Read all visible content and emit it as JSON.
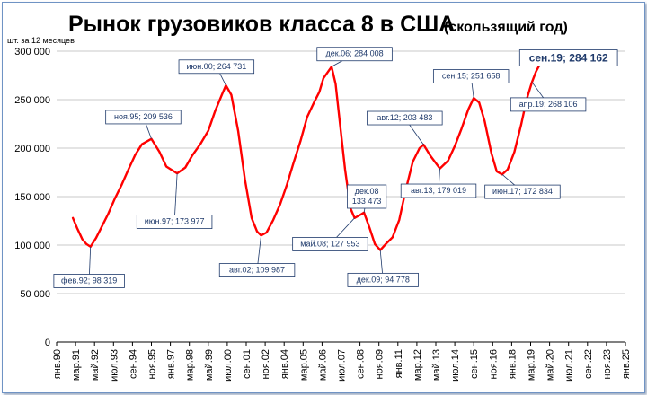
{
  "chart_data": {
    "type": "line",
    "title": "Рынок грузовиков класса 8 в США",
    "subtitle": "(скользящий год)",
    "unit_label": "шт. за 12 месяцев",
    "ylim": [
      0,
      300000
    ],
    "y_ticks": [
      "0",
      "50 000",
      "100 000",
      "150 000",
      "200 000",
      "250 000",
      "300 000"
    ],
    "x_ticks": [
      "янв.90",
      "мар.91",
      "май.92",
      "июл.93",
      "сен.94",
      "ноя.95",
      "янв.97",
      "мар.98",
      "май.99",
      "июл.00",
      "сен.01",
      "ноя.02",
      "янв.04",
      "мар.05",
      "май.06",
      "июл.07",
      "сен.08",
      "ноя.09",
      "янв.11",
      "мар.12",
      "май.13",
      "июл.14",
      "сен.15",
      "ноя.16",
      "янв.18",
      "мар.19",
      "май.20",
      "июл.21",
      "сен.22",
      "ноя.23",
      "янв.25"
    ],
    "line_color": "#ff0000",
    "series": [
      {
        "points": [
          [
            "1991-01",
            128000
          ],
          [
            "1991-04",
            118000
          ],
          [
            "1991-08",
            106000
          ],
          [
            "1991-11",
            101000
          ],
          [
            "1992-02",
            98319
          ],
          [
            "1992-06",
            107000
          ],
          [
            "1992-10",
            118000
          ],
          [
            "1993-03",
            132000
          ],
          [
            "1993-08",
            148000
          ],
          [
            "1994-01",
            162000
          ],
          [
            "1994-06",
            178000
          ],
          [
            "1994-11",
            193000
          ],
          [
            "1995-04",
            204000
          ],
          [
            "1995-11",
            209536
          ],
          [
            "1996-05",
            196000
          ],
          [
            "1996-10",
            181000
          ],
          [
            "1997-06",
            173977
          ],
          [
            "1997-12",
            180000
          ],
          [
            "1998-05",
            192000
          ],
          [
            "1998-11",
            204000
          ],
          [
            "1999-05",
            218000
          ],
          [
            "1999-10",
            238000
          ],
          [
            "2000-03",
            255000
          ],
          [
            "2000-06",
            264731
          ],
          [
            "2000-10",
            255000
          ],
          [
            "2001-03",
            218000
          ],
          [
            "2001-08",
            168000
          ],
          [
            "2002-01",
            128000
          ],
          [
            "2002-05",
            114000
          ],
          [
            "2002-08",
            109987
          ],
          [
            "2002-12",
            113000
          ],
          [
            "2003-05",
            126000
          ],
          [
            "2003-10",
            142000
          ],
          [
            "2004-03",
            162000
          ],
          [
            "2004-08",
            185000
          ],
          [
            "2005-01",
            207000
          ],
          [
            "2005-06",
            232000
          ],
          [
            "2005-11",
            247000
          ],
          [
            "2006-03",
            258000
          ],
          [
            "2006-06",
            272000
          ],
          [
            "2006-09",
            278000
          ],
          [
            "2006-12",
            284008
          ],
          [
            "2007-03",
            266000
          ],
          [
            "2007-06",
            228000
          ],
          [
            "2007-10",
            178000
          ],
          [
            "2008-02",
            138000
          ],
          [
            "2008-05",
            127953
          ],
          [
            "2008-09",
            131000
          ],
          [
            "2008-12",
            133473
          ],
          [
            "2009-04",
            118000
          ],
          [
            "2009-08",
            101000
          ],
          [
            "2009-12",
            94778
          ],
          [
            "2010-04",
            101000
          ],
          [
            "2010-09",
            108000
          ],
          [
            "2011-02",
            126000
          ],
          [
            "2011-07",
            158000
          ],
          [
            "2011-12",
            186000
          ],
          [
            "2012-05",
            200000
          ],
          [
            "2012-08",
            203483
          ],
          [
            "2013-01",
            192000
          ],
          [
            "2013-08",
            179019
          ],
          [
            "2014-02",
            187000
          ],
          [
            "2014-07",
            202000
          ],
          [
            "2014-12",
            220000
          ],
          [
            "2015-05",
            240000
          ],
          [
            "2015-09",
            251658
          ],
          [
            "2016-01",
            247000
          ],
          [
            "2016-05",
            228000
          ],
          [
            "2016-10",
            195000
          ],
          [
            "2017-02",
            176000
          ],
          [
            "2017-06",
            172834
          ],
          [
            "2017-10",
            178000
          ],
          [
            "2018-03",
            196000
          ],
          [
            "2018-08",
            224000
          ],
          [
            "2018-12",
            250000
          ],
          [
            "2019-04",
            268106
          ],
          [
            "2019-07",
            279000
          ],
          [
            "2019-09",
            284162
          ]
        ]
      }
    ],
    "annotations": [
      {
        "text": "фев.92; 98 319",
        "at": [
          "1992-02",
          98319
        ],
        "label_at": [
          "1992-01",
          63000
        ],
        "bold": false
      },
      {
        "text": "ноя.95; 209 536",
        "at": [
          "1995-11",
          209536
        ],
        "label_at": [
          "1995-05",
          232000
        ],
        "bold": false
      },
      {
        "text": "июн.97; 173 977",
        "at": [
          "1997-06",
          173977
        ],
        "label_at": [
          "1997-04",
          124000
        ],
        "bold": false
      },
      {
        "text": "июн.00; 264 731",
        "at": [
          "2000-06",
          264731
        ],
        "label_at": [
          "1999-11",
          284000
        ],
        "bold": false
      },
      {
        "text": "авг.02; 109 987",
        "at": [
          "2002-08",
          109987
        ],
        "label_at": [
          "2002-05",
          74000
        ],
        "bold": false
      },
      {
        "text": "дек.06; 284 008",
        "at": [
          "2006-12",
          284008
        ],
        "label_at": [
          "2008-05",
          297000
        ],
        "bold": false
      },
      {
        "text": "май.08; 127 953",
        "at": [
          "2008-05",
          127953
        ],
        "label_at": [
          "2006-11",
          101000
        ],
        "bold": false
      },
      {
        "text": "дек.09; 94 778",
        "at": [
          "2009-12",
          94778
        ],
        "label_at": [
          "2010-02",
          64000
        ],
        "bold": false
      },
      {
        "text": "авг.12; 203 483",
        "at": [
          "2012-08",
          203483
        ],
        "label_at": [
          "2011-06",
          231000
        ],
        "bold": false
      },
      {
        "text": "авг.13; 179 019",
        "at": [
          "2013-08",
          179019
        ],
        "label_at": [
          "2013-07",
          156000
        ],
        "bold": false
      },
      {
        "text": "сен.15; 251 658",
        "at": [
          "2015-09",
          251658
        ],
        "label_at": [
          "2015-07",
          274000
        ],
        "bold": false
      },
      {
        "text": "июн.17; 172 834",
        "at": [
          "2017-06",
          172834
        ],
        "label_at": [
          "2018-09",
          155000
        ],
        "bold": false
      },
      {
        "text": "апр.19; 268 106",
        "at": [
          "2019-04",
          268106
        ],
        "label_at": [
          "2020-04",
          245000
        ],
        "bold": false
      },
      {
        "text": "сен.19; 284 162",
        "at": [
          "2019-09",
          284162
        ],
        "label_at": [
          "2021-07",
          293000
        ],
        "bold": true
      }
    ],
    "annotation_multiline": {
      "lines": [
        "дек.08",
        "133 473"
      ],
      "at": [
        "2008-12",
        133473
      ],
      "label_at": [
        "2009-02",
        150000
      ]
    },
    "grid": true,
    "legend": "none"
  }
}
